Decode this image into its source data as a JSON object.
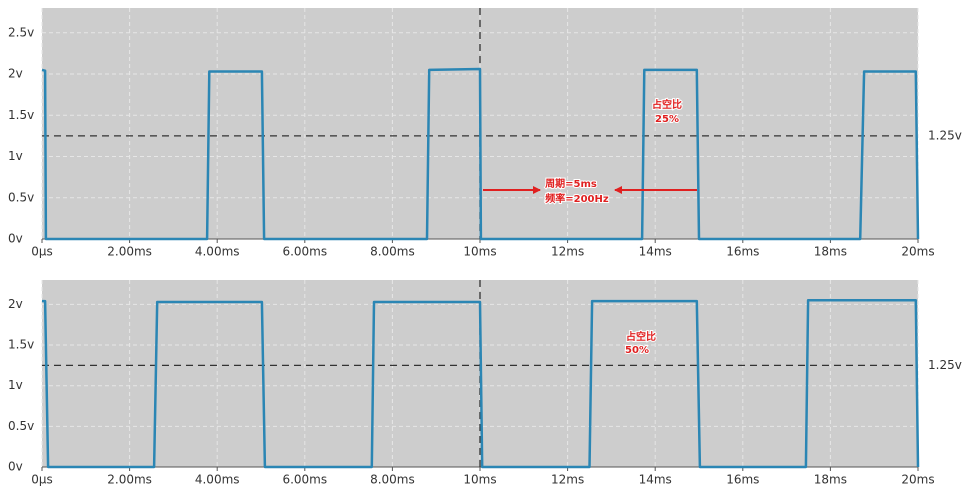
{
  "chart_data": [
    {
      "type": "line",
      "x": [
        0,
        0.07,
        0.09,
        3.77,
        3.82,
        5.02,
        5.07,
        8.79,
        8.84,
        10.0,
        10.02,
        13.7,
        13.75,
        14.95,
        15.0,
        18.68,
        18.77,
        19.95,
        20.0
      ],
      "series": [
        {
          "color": "#2b86b4",
          "values": [
            2.05,
            2.04,
            0,
            0,
            2.03,
            2.03,
            0,
            0,
            2.05,
            2.06,
            0,
            0,
            2.05,
            2.05,
            0,
            0,
            2.03,
            2.03,
            0
          ]
        }
      ],
      "xlim": [
        0,
        20
      ],
      "xticks": [
        {
          "value": 0,
          "label": "0μs"
        },
        {
          "value": 2,
          "label": "2.00ms"
        },
        {
          "value": 4,
          "label": "4.00ms"
        },
        {
          "value": 6,
          "label": "6.00ms"
        },
        {
          "value": 8,
          "label": "8.00ms"
        },
        {
          "value": 10,
          "label": "10ms"
        },
        {
          "value": 12,
          "label": "12ms"
        },
        {
          "value": 14,
          "label": "14ms"
        },
        {
          "value": 16,
          "label": "16ms"
        },
        {
          "value": 18,
          "label": "18ms"
        },
        {
          "value": 20,
          "label": "20ms"
        }
      ],
      "ylim": [
        0,
        2.8
      ],
      "yticks": [
        {
          "value": 0,
          "label": "0v"
        },
        {
          "value": 0.5,
          "label": "0.5v"
        },
        {
          "value": 1,
          "label": "1v"
        },
        {
          "value": 1.5,
          "label": "1.5v"
        },
        {
          "value": 2,
          "label": "2v"
        },
        {
          "value": 2.5,
          "label": "2.5v"
        }
      ],
      "grid": true,
      "hline": {
        "value": 1.25,
        "label": "1.25v"
      },
      "vline": 10,
      "annotations": [
        "占空比",
        "25%",
        "周期=5ms",
        "频率=200Hz"
      ]
    },
    {
      "type": "line",
      "x": [
        0,
        0.07,
        0.14,
        2.56,
        2.63,
        5.02,
        5.09,
        7.53,
        7.58,
        10.0,
        10.05,
        12.5,
        12.56,
        14.95,
        15.02,
        17.44,
        17.49,
        19.95,
        20.0
      ],
      "series": [
        {
          "color": "#2b86b4",
          "values": [
            2.04,
            2.04,
            0,
            0,
            2.03,
            2.03,
            0,
            0,
            2.03,
            2.03,
            0,
            0,
            2.04,
            2.04,
            0,
            0,
            2.05,
            2.05,
            0
          ]
        }
      ],
      "xlim": [
        0,
        20
      ],
      "xticks": [
        {
          "value": 0,
          "label": "0μs"
        },
        {
          "value": 2,
          "label": "2.00ms"
        },
        {
          "value": 4,
          "label": "4.00ms"
        },
        {
          "value": 6,
          "label": "6.00ms"
        },
        {
          "value": 8,
          "label": "8.00ms"
        },
        {
          "value": 10,
          "label": "10ms"
        },
        {
          "value": 12,
          "label": "12ms"
        },
        {
          "value": 14,
          "label": "14ms"
        },
        {
          "value": 16,
          "label": "16ms"
        },
        {
          "value": 18,
          "label": "18ms"
        },
        {
          "value": 20,
          "label": "20ms"
        }
      ],
      "ylim": [
        0,
        2.3
      ],
      "yticks": [
        {
          "value": 0,
          "label": "0v"
        },
        {
          "value": 0.5,
          "label": "0.5v"
        },
        {
          "value": 1,
          "label": "1v"
        },
        {
          "value": 1.5,
          "label": "1.5v"
        },
        {
          "value": 2,
          "label": "2v"
        }
      ],
      "grid": true,
      "hline": {
        "value": 1.25,
        "label": "1.25v"
      },
      "vline": 10,
      "annotations": [
        "占空比",
        "50%"
      ]
    }
  ]
}
